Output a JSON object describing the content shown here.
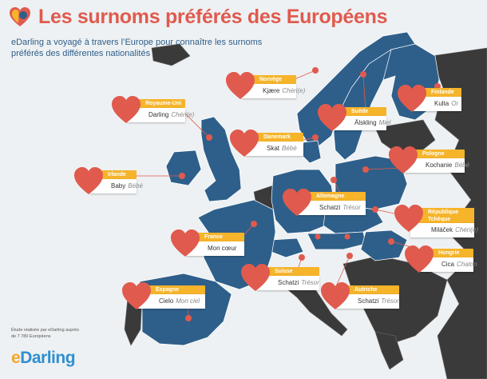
{
  "header": {
    "title": "Les surnoms préférés des Européens",
    "subtitle": "eDarling a voyagé à travers l’Europe pour connaître les surnoms préférés des différentes nationalités"
  },
  "colors": {
    "accent": "#e05a4e",
    "tab": "#f5b42a",
    "land_featured": "#2e5f8a",
    "land_other": "#3a3a3a",
    "sea": "#eef1f3"
  },
  "countries": [
    {
      "country": "Norvège",
      "nickname": "Kjære",
      "translation": "Chéri(e)"
    },
    {
      "country": "Royaume-Uni",
      "nickname": "Darling",
      "translation": "Chéri(e)"
    },
    {
      "country": "Finlande",
      "nickname": "Kulta",
      "translation": "Or"
    },
    {
      "country": "Suède",
      "nickname": "Älskling",
      "translation": "Miel"
    },
    {
      "country": "Danemark",
      "nickname": "Skat",
      "translation": "Bébé"
    },
    {
      "country": "Pologne",
      "nickname": "Kochanie",
      "translation": "Bébé"
    },
    {
      "country": "Irlande",
      "nickname": "Baby",
      "translation": "Bébé"
    },
    {
      "country": "Allemagne",
      "nickname": "Schatzi",
      "translation": "Trésor"
    },
    {
      "country": "République Tchèque",
      "nickname": "Miláček",
      "translation": "Chéri(e)"
    },
    {
      "country": "France",
      "nickname": "Mon cœur",
      "translation": ""
    },
    {
      "country": "Hongrie",
      "nickname": "Cica",
      "translation": "Chaton"
    },
    {
      "country": "Suisse",
      "nickname": "Schatzi",
      "translation": "Trésor"
    },
    {
      "country": "Espagne",
      "nickname": "Cielo",
      "translation": "Mon ciel"
    },
    {
      "country": "Autriche",
      "nickname": "Schatzi",
      "translation": "Trésor"
    }
  ],
  "footer": {
    "note": "Étude réalisée par eDarling auprès de 7 780 Européens",
    "brand_prefix": "e",
    "brand_rest": "Darling"
  }
}
